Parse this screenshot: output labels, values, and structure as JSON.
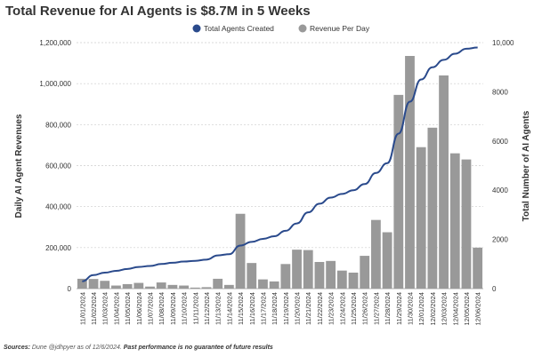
{
  "chart_data": {
    "type": "bar+line",
    "title": "Total Revenue for AI Agents is $8.7M in 5 Weeks",
    "categories": [
      "11/01/2024",
      "11/02/2024",
      "11/03/2024",
      "11/04/2024",
      "11/05/2024",
      "11/06/2024",
      "11/07/2024",
      "11/08/2024",
      "11/09/2024",
      "11/10/2024",
      "11/11/2024",
      "11/12/2024",
      "11/13/2024",
      "11/14/2024",
      "11/15/2024",
      "11/16/2024",
      "11/17/2024",
      "11/18/2024",
      "11/19/2024",
      "11/20/2024",
      "11/21/2024",
      "11/22/2024",
      "11/23/2024",
      "11/24/2024",
      "11/25/2024",
      "11/26/2024",
      "11/27/2024",
      "11/28/2024",
      "11/29/2024",
      "11/30/2024",
      "12/01/2024",
      "12/02/2024",
      "12/03/2024",
      "12/04/2024",
      "12/05/2024",
      "12/06/2024"
    ],
    "series": [
      {
        "name": "Revenue Per Day",
        "type": "bar",
        "axis": "left",
        "color": "#999999",
        "values": [
          48000,
          47000,
          38000,
          15000,
          22000,
          28000,
          10000,
          30000,
          18000,
          15000,
          5000,
          7000,
          48000,
          18000,
          365000,
          125000,
          45000,
          35000,
          120000,
          190000,
          188000,
          130000,
          135000,
          88000,
          78000,
          160000,
          335000,
          275000,
          945000,
          1135000,
          690000,
          785000,
          1040000,
          660000,
          630000,
          200000
        ]
      },
      {
        "name": "Total Agents Created",
        "type": "line",
        "axis": "right",
        "color": "#2a4a8c",
        "values": [
          300,
          550,
          650,
          720,
          800,
          880,
          920,
          1000,
          1050,
          1100,
          1130,
          1180,
          1350,
          1400,
          1750,
          1900,
          2020,
          2130,
          2350,
          2650,
          3100,
          3450,
          3700,
          3850,
          4000,
          4250,
          4700,
          5100,
          6300,
          7600,
          8500,
          9000,
          9300,
          9550,
          9750,
          9800
        ]
      }
    ],
    "ylabel": "Daily AI Agent Revenues",
    "y2label": "Total Number of AI Agents",
    "ylim": [
      0,
      1200000
    ],
    "y2lim": [
      0,
      10000
    ],
    "yticks": [
      "0",
      "200,000",
      "400,000",
      "600,000",
      "800,000",
      "1,000,000",
      "1,200,000"
    ],
    "y2ticks": [
      "0",
      "2000",
      "4000",
      "6000",
      "8000",
      "10,000"
    ],
    "grid": "horizontal dashed",
    "legend": "top-center"
  },
  "footer": {
    "sources_label": "Sources:",
    "sources_text": " Dune @jdhpyer as of 12/6/2024. ",
    "disclaimer": "Past performance is no guarantee of future results"
  }
}
